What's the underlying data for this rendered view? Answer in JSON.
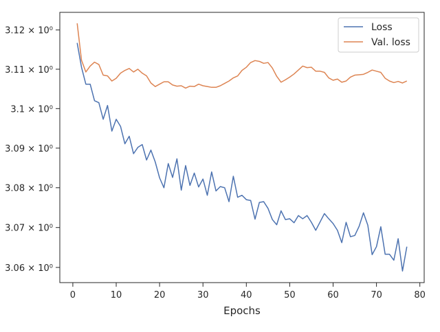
{
  "chart_data": {
    "type": "line",
    "title": "",
    "xlabel": "Epochs",
    "ylabel": "",
    "xlim": [
      -3,
      81
    ],
    "ylim": [
      3.0562,
      3.1245
    ],
    "x_ticks": [
      0,
      10,
      20,
      30,
      40,
      50,
      60,
      70,
      80
    ],
    "x_tick_labels": [
      "0",
      "10",
      "20",
      "30",
      "40",
      "50",
      "60",
      "70",
      "80"
    ],
    "y_ticks": [
      3.06,
      3.07,
      3.08,
      3.09,
      3.1,
      3.11,
      3.12
    ],
    "y_tick_labels": [
      "3.06 × 10⁰",
      "3.07 × 10⁰",
      "3.08 × 10⁰",
      "3.09 × 10⁰",
      "3.1 × 10⁰",
      "3.11 × 10⁰",
      "3.12 × 10⁰"
    ],
    "y_scale": "log",
    "grid": false,
    "legend_position": "top-right",
    "series": [
      {
        "name": "Loss",
        "color": "#4c72b0",
        "x": [
          1,
          2,
          3,
          4,
          5,
          6,
          7,
          8,
          9,
          10,
          11,
          12,
          13,
          14,
          15,
          16,
          17,
          18,
          19,
          20,
          21,
          22,
          23,
          24,
          25,
          26,
          27,
          28,
          29,
          30,
          31,
          32,
          33,
          34,
          35,
          36,
          37,
          38,
          39,
          40,
          41,
          42,
          43,
          44,
          45,
          46,
          47,
          48,
          49,
          50,
          51,
          52,
          53,
          54,
          55,
          56,
          57,
          58,
          59,
          60,
          61,
          62,
          63,
          64,
          65,
          66,
          67,
          68,
          69,
          70,
          71,
          72,
          73,
          74,
          75,
          76,
          77
        ],
        "values": [
          3.1167,
          3.1105,
          3.1062,
          3.1062,
          3.102,
          3.1015,
          3.0973,
          3.1008,
          3.0943,
          3.0973,
          3.0955,
          3.0911,
          3.093,
          3.0886,
          3.0902,
          3.0909,
          3.087,
          3.0895,
          3.0865,
          3.0825,
          3.08,
          3.0861,
          3.0826,
          3.0873,
          3.0794,
          3.0856,
          3.0806,
          3.0837,
          3.0802,
          3.0822,
          3.0781,
          3.084,
          3.0792,
          3.0803,
          3.08,
          3.0765,
          3.0829,
          3.0776,
          3.0781,
          3.077,
          3.0768,
          3.0721,
          3.0763,
          3.0765,
          3.0748,
          3.072,
          3.0707,
          3.0742,
          3.072,
          3.0722,
          3.0712,
          3.073,
          3.0722,
          3.073,
          3.0713,
          3.0693,
          3.0714,
          3.0735,
          3.0722,
          3.071,
          3.0693,
          3.0662,
          3.0713,
          3.0677,
          3.068,
          3.0703,
          3.0737,
          3.0706,
          3.0632,
          3.0652,
          3.0702,
          3.0633,
          3.0633,
          3.0618,
          3.0672,
          3.0591,
          3.0652
        ]
      },
      {
        "name": "Val. loss",
        "color": "#dd8452",
        "x": [
          1,
          2,
          3,
          4,
          5,
          6,
          7,
          8,
          9,
          10,
          11,
          12,
          13,
          14,
          15,
          16,
          17,
          18,
          19,
          20,
          21,
          22,
          23,
          24,
          25,
          26,
          27,
          28,
          29,
          30,
          31,
          32,
          33,
          34,
          35,
          36,
          37,
          38,
          39,
          40,
          41,
          42,
          43,
          44,
          45,
          46,
          47,
          48,
          49,
          50,
          51,
          52,
          53,
          54,
          55,
          56,
          57,
          58,
          59,
          60,
          61,
          62,
          63,
          64,
          65,
          66,
          67,
          68,
          69,
          70,
          71,
          72,
          73,
          74,
          75,
          76,
          77
        ],
        "values": [
          3.1217,
          3.1123,
          3.1093,
          3.1108,
          3.1118,
          3.1112,
          3.1085,
          3.1083,
          3.107,
          3.1077,
          3.109,
          3.1097,
          3.1102,
          3.1093,
          3.11,
          3.109,
          3.1083,
          3.1065,
          3.1056,
          3.1062,
          3.1068,
          3.1068,
          3.106,
          3.1057,
          3.1058,
          3.1052,
          3.1057,
          3.1056,
          3.1062,
          3.1058,
          3.1056,
          3.1054,
          3.1054,
          3.1058,
          3.1064,
          3.107,
          3.1078,
          3.1083,
          3.1097,
          3.1105,
          3.1117,
          3.1122,
          3.112,
          3.1115,
          3.1117,
          3.1103,
          3.1082,
          3.1067,
          3.1073,
          3.108,
          3.1088,
          3.1098,
          3.1108,
          3.1104,
          3.1105,
          3.1095,
          3.1095,
          3.1092,
          3.1078,
          3.1072,
          3.1075,
          3.1067,
          3.107,
          3.108,
          3.1085,
          3.1086,
          3.1087,
          3.1092,
          3.1098,
          3.1095,
          3.1092,
          3.1077,
          3.107,
          3.1066,
          3.1069,
          3.1065,
          3.107
        ]
      }
    ]
  }
}
